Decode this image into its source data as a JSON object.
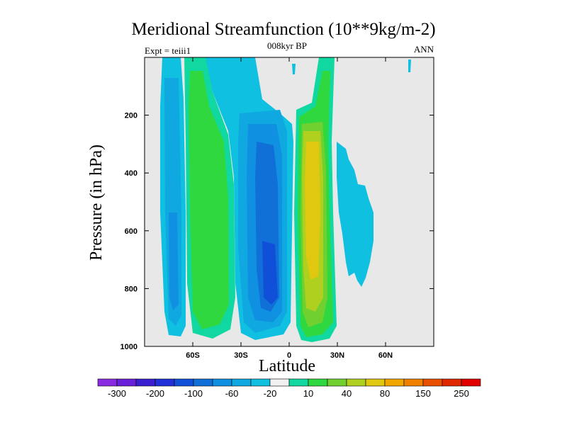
{
  "chart_data": {
    "type": "heatmap",
    "title": "Meridional Streamfunction (10**9kg/m-2)",
    "subtitle_left": "Expt = teiii1",
    "subtitle_center": "008kyr BP",
    "subtitle_right": "ANN",
    "xlabel": "Latitude",
    "ylabel": "Pressure (in hPa)",
    "x_ticks": [
      "60S",
      "30S",
      "0",
      "30N",
      "60N"
    ],
    "x_tick_values": [
      -60,
      -30,
      0,
      30,
      60
    ],
    "xlim": [
      -90,
      90
    ],
    "y_ticks": [
      "200",
      "400",
      "600",
      "800",
      "1000"
    ],
    "y_tick_values": [
      200,
      400,
      600,
      800,
      1000
    ],
    "ylim": [
      1000,
      0
    ],
    "y_reversed": true,
    "colorbar": {
      "labels": [
        "-300",
        "-200",
        "-100",
        "-60",
        "-20",
        "10",
        "40",
        "80",
        "150",
        "250"
      ],
      "colors": [
        "#8a2be2",
        "#6a1fd8",
        "#3a1fd0",
        "#2030d8",
        "#1050d8",
        "#1070d8",
        "#1090e0",
        "#10a8e0",
        "#10c0e0",
        "#f0f0f0",
        "#10d8a0",
        "#30d840",
        "#70d030",
        "#b0d020",
        "#e0c810",
        "#f0a800",
        "#f08000",
        "#e85000",
        "#e02800",
        "#e00000"
      ]
    },
    "background_color": "#e8e8e8",
    "features": [
      {
        "name": "southern negative cell",
        "lat_range": [
          -78,
          -65
        ],
        "p_range": [
          0,
          970
        ],
        "min_value": -60
      },
      {
        "name": "southern positive cell",
        "lat_range": [
          -62,
          -35
        ],
        "p_range": [
          0,
          980
        ],
        "max_value": 40
      },
      {
        "name": "southern Hadley cell (negative)",
        "lat_range": [
          -32,
          -3
        ],
        "p_range": [
          100,
          970
        ],
        "min_value": -100
      },
      {
        "name": "northern Hadley cell (positive)",
        "lat_range": [
          5,
          30
        ],
        "p_range": [
          0,
          980
        ],
        "max_value": 80
      },
      {
        "name": "northern weak negative cell",
        "lat_range": [
          30,
          52
        ],
        "p_range": [
          200,
          780
        ],
        "min_value": -20
      }
    ]
  }
}
